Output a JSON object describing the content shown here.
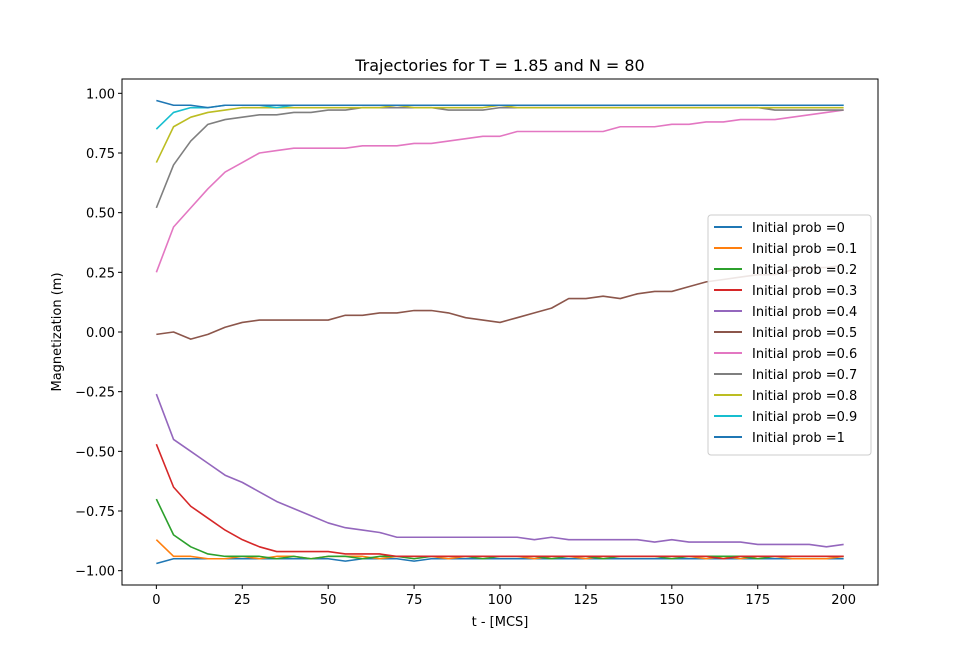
{
  "chart_data": {
    "type": "line",
    "title": "Trajectories for T = 1.85 and N = 80",
    "xlabel": "t - [MCS]",
    "ylabel": "Magnetization (m)",
    "xlim": [
      -10,
      210
    ],
    "ylim": [
      -1.06,
      1.06
    ],
    "xticks": [
      0,
      25,
      50,
      75,
      100,
      125,
      150,
      175,
      200
    ],
    "xtick_labels": [
      "0",
      "25",
      "50",
      "75",
      "100",
      "125",
      "150",
      "175",
      "200"
    ],
    "yticks": [
      -1.0,
      -0.75,
      -0.5,
      -0.25,
      0.0,
      0.25,
      0.5,
      0.75,
      1.0
    ],
    "ytick_labels": [
      "−1.00",
      "−0.75",
      "−0.50",
      "−0.25",
      "0.00",
      "0.25",
      "0.50",
      "0.75",
      "1.00"
    ],
    "grid": false,
    "legend_position": "center-right",
    "x": [
      0,
      5,
      10,
      15,
      20,
      25,
      30,
      35,
      40,
      45,
      50,
      55,
      60,
      65,
      70,
      75,
      80,
      85,
      90,
      95,
      100,
      105,
      110,
      115,
      120,
      125,
      130,
      135,
      140,
      145,
      150,
      155,
      160,
      165,
      170,
      175,
      180,
      185,
      190,
      195,
      200
    ],
    "series": [
      {
        "name": "Initial prob =0",
        "color": "#1f77b4",
        "values": [
          -0.97,
          -0.95,
          -0.95,
          -0.95,
          -0.95,
          -0.95,
          -0.95,
          -0.95,
          -0.95,
          -0.95,
          -0.95,
          -0.96,
          -0.95,
          -0.95,
          -0.95,
          -0.96,
          -0.95,
          -0.95,
          -0.95,
          -0.95,
          -0.95,
          -0.95,
          -0.95,
          -0.95,
          -0.95,
          -0.95,
          -0.95,
          -0.95,
          -0.95,
          -0.95,
          -0.95,
          -0.95,
          -0.95,
          -0.95,
          -0.95,
          -0.95,
          -0.95,
          -0.95,
          -0.95,
          -0.95,
          -0.95
        ]
      },
      {
        "name": "Initial prob =0.1",
        "color": "#ff7f0e",
        "values": [
          -0.87,
          -0.94,
          -0.94,
          -0.95,
          -0.95,
          -0.94,
          -0.95,
          -0.94,
          -0.94,
          -0.95,
          -0.94,
          -0.94,
          -0.94,
          -0.95,
          -0.94,
          -0.94,
          -0.94,
          -0.95,
          -0.94,
          -0.94,
          -0.94,
          -0.94,
          -0.95,
          -0.94,
          -0.94,
          -0.95,
          -0.94,
          -0.94,
          -0.94,
          -0.94,
          -0.94,
          -0.94,
          -0.95,
          -0.94,
          -0.95,
          -0.94,
          -0.94,
          -0.95,
          -0.95,
          -0.95,
          -0.94
        ]
      },
      {
        "name": "Initial prob =0.2",
        "color": "#2ca02c",
        "values": [
          -0.7,
          -0.85,
          -0.9,
          -0.93,
          -0.94,
          -0.94,
          -0.94,
          -0.95,
          -0.94,
          -0.95,
          -0.94,
          -0.94,
          -0.95,
          -0.94,
          -0.94,
          -0.95,
          -0.94,
          -0.94,
          -0.94,
          -0.95,
          -0.94,
          -0.94,
          -0.94,
          -0.95,
          -0.94,
          -0.94,
          -0.95,
          -0.94,
          -0.94,
          -0.94,
          -0.95,
          -0.94,
          -0.94,
          -0.94,
          -0.94,
          -0.95,
          -0.94,
          -0.94,
          -0.94,
          -0.94,
          -0.94
        ]
      },
      {
        "name": "Initial prob =0.3",
        "color": "#d62728",
        "values": [
          -0.47,
          -0.65,
          -0.73,
          -0.78,
          -0.83,
          -0.87,
          -0.9,
          -0.92,
          -0.92,
          -0.92,
          -0.92,
          -0.93,
          -0.93,
          -0.93,
          -0.94,
          -0.94,
          -0.94,
          -0.94,
          -0.94,
          -0.94,
          -0.94,
          -0.94,
          -0.94,
          -0.94,
          -0.94,
          -0.94,
          -0.94,
          -0.94,
          -0.94,
          -0.94,
          -0.94,
          -0.94,
          -0.94,
          -0.95,
          -0.94,
          -0.94,
          -0.94,
          -0.94,
          -0.94,
          -0.94,
          -0.94
        ]
      },
      {
        "name": "Initial prob =0.4",
        "color": "#9467bd",
        "values": [
          -0.26,
          -0.45,
          -0.5,
          -0.55,
          -0.6,
          -0.63,
          -0.67,
          -0.71,
          -0.74,
          -0.77,
          -0.8,
          -0.82,
          -0.83,
          -0.84,
          -0.86,
          -0.86,
          -0.86,
          -0.86,
          -0.86,
          -0.86,
          -0.86,
          -0.86,
          -0.87,
          -0.86,
          -0.87,
          -0.87,
          -0.87,
          -0.87,
          -0.87,
          -0.88,
          -0.87,
          -0.88,
          -0.88,
          -0.88,
          -0.88,
          -0.89,
          -0.89,
          -0.89,
          -0.89,
          -0.9,
          -0.89
        ]
      },
      {
        "name": "Initial prob =0.5",
        "color": "#8c564b",
        "values": [
          -0.01,
          0.0,
          -0.03,
          -0.01,
          0.02,
          0.04,
          0.05,
          0.05,
          0.05,
          0.05,
          0.05,
          0.07,
          0.07,
          0.08,
          0.08,
          0.09,
          0.09,
          0.08,
          0.06,
          0.05,
          0.04,
          0.06,
          0.08,
          0.1,
          0.14,
          0.14,
          0.15,
          0.14,
          0.16,
          0.17,
          0.17,
          0.19,
          0.21,
          0.22,
          0.23,
          0.24,
          0.24,
          0.26,
          0.27,
          0.27,
          0.28
        ]
      },
      {
        "name": "Initial prob =0.6",
        "color": "#e377c2",
        "values": [
          0.25,
          0.44,
          0.52,
          0.6,
          0.67,
          0.71,
          0.75,
          0.76,
          0.77,
          0.77,
          0.77,
          0.77,
          0.78,
          0.78,
          0.78,
          0.79,
          0.79,
          0.8,
          0.81,
          0.82,
          0.82,
          0.84,
          0.84,
          0.84,
          0.84,
          0.84,
          0.84,
          0.86,
          0.86,
          0.86,
          0.87,
          0.87,
          0.88,
          0.88,
          0.89,
          0.89,
          0.89,
          0.9,
          0.91,
          0.92,
          0.93
        ]
      },
      {
        "name": "Initial prob =0.7",
        "color": "#7f7f7f",
        "values": [
          0.52,
          0.7,
          0.8,
          0.87,
          0.89,
          0.9,
          0.91,
          0.91,
          0.92,
          0.92,
          0.93,
          0.93,
          0.94,
          0.94,
          0.94,
          0.94,
          0.94,
          0.93,
          0.93,
          0.93,
          0.94,
          0.94,
          0.94,
          0.94,
          0.94,
          0.94,
          0.94,
          0.94,
          0.94,
          0.94,
          0.94,
          0.94,
          0.94,
          0.94,
          0.94,
          0.94,
          0.93,
          0.93,
          0.93,
          0.93,
          0.93
        ]
      },
      {
        "name": "Initial prob =0.8",
        "color": "#bcbd22",
        "values": [
          0.71,
          0.86,
          0.9,
          0.92,
          0.93,
          0.94,
          0.94,
          0.94,
          0.94,
          0.94,
          0.94,
          0.94,
          0.94,
          0.94,
          0.95,
          0.94,
          0.94,
          0.94,
          0.94,
          0.94,
          0.95,
          0.94,
          0.94,
          0.94,
          0.94,
          0.94,
          0.94,
          0.94,
          0.94,
          0.94,
          0.94,
          0.94,
          0.94,
          0.94,
          0.94,
          0.94,
          0.94,
          0.94,
          0.94,
          0.94,
          0.94
        ]
      },
      {
        "name": "Initial prob =0.9",
        "color": "#17becf",
        "values": [
          0.85,
          0.92,
          0.94,
          0.94,
          0.95,
          0.95,
          0.95,
          0.94,
          0.95,
          0.95,
          0.95,
          0.95,
          0.95,
          0.95,
          0.95,
          0.95,
          0.95,
          0.95,
          0.95,
          0.95,
          0.95,
          0.95,
          0.95,
          0.95,
          0.95,
          0.95,
          0.95,
          0.95,
          0.95,
          0.95,
          0.95,
          0.95,
          0.95,
          0.95,
          0.95,
          0.95,
          0.95,
          0.95,
          0.95,
          0.95,
          0.95
        ]
      },
      {
        "name": "Initial prob =1",
        "color": "#1f77b4",
        "values": [
          0.97,
          0.95,
          0.95,
          0.94,
          0.95,
          0.95,
          0.95,
          0.95,
          0.95,
          0.95,
          0.95,
          0.95,
          0.95,
          0.95,
          0.95,
          0.95,
          0.95,
          0.95,
          0.95,
          0.95,
          0.95,
          0.95,
          0.95,
          0.95,
          0.95,
          0.95,
          0.95,
          0.95,
          0.95,
          0.95,
          0.95,
          0.95,
          0.95,
          0.95,
          0.95,
          0.95,
          0.95,
          0.95,
          0.95,
          0.95,
          0.95
        ]
      }
    ]
  }
}
